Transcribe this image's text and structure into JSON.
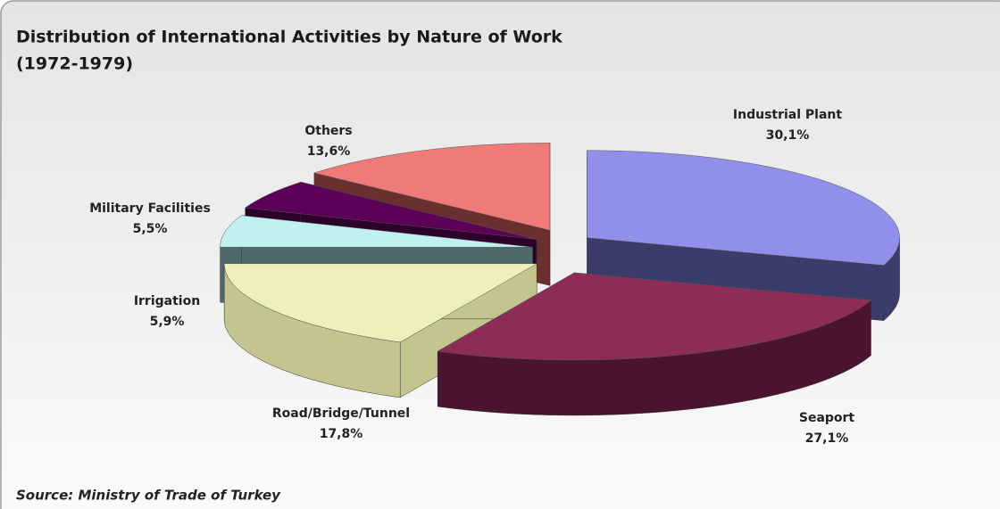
{
  "chart_data": {
    "type": "pie3d",
    "title": "Distribution of International Activities by Nature of  Work",
    "subtitle": "(1972-1979)",
    "source": "Source: Ministry of Trade of Turkey",
    "categories": [
      "Industrial Plant",
      "Seaport",
      "Road/Bridge/Tunnel",
      "Irrigation",
      "Military Facilities",
      "Others"
    ],
    "values": [
      30.1,
      27.1,
      17.8,
      5.9,
      5.5,
      13.6
    ],
    "value_labels": [
      "30,1%",
      "27,1%",
      "17,8%",
      "5,9%",
      "5,5%",
      "13,6%"
    ],
    "colors": [
      "#9090ea",
      "#8e2c58",
      "#efefbc",
      "#c2f0f0",
      "#5c0058",
      "#f07a78"
    ],
    "side_colors": [
      "#3c3c6a",
      "#4a1430",
      "#c4c48e",
      "#4f6a6a",
      "#2c002a",
      "#6a3030"
    ]
  }
}
